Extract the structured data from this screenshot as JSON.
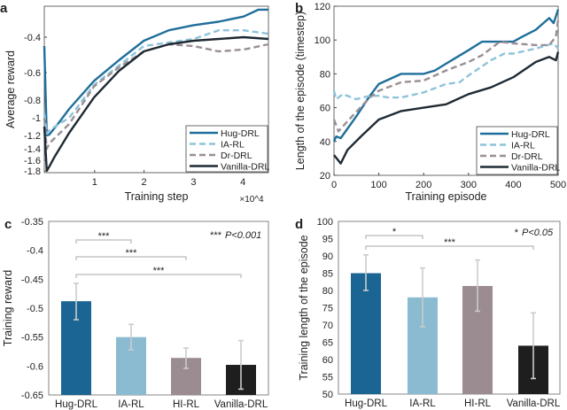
{
  "chart_data": [
    {
      "panel": "a",
      "type": "line",
      "xlabel": "Training step",
      "x_multiplier": "×10^4",
      "ylabel": "Average reward",
      "xlim": [
        0,
        4.5
      ],
      "ylim": [
        -1.83,
        -0.22
      ],
      "xticks": [
        "1",
        "2",
        "3",
        "4"
      ],
      "yticks": [
        "-0.4",
        "-0.6",
        "-0.8",
        "-1",
        "-1.2",
        "-1.4",
        "-1.6",
        "-1.8"
      ],
      "legend_position": "bottom-right",
      "series": [
        {
          "name": "Hug-DRL",
          "color": "#1f6f9a",
          "dash": false,
          "x": [
            0,
            0.05,
            0.1,
            0.3,
            0.5,
            1,
            1.5,
            2,
            2.5,
            3,
            3.5,
            4,
            4.3,
            4.5
          ],
          "y": [
            -0.45,
            -1.2,
            -1.19,
            -1.05,
            -0.9,
            -0.66,
            -0.53,
            -0.42,
            -0.36,
            -0.33,
            -0.31,
            -0.28,
            -0.24,
            -0.24
          ]
        },
        {
          "name": "IA-RL",
          "color": "#8ec3da",
          "dash": true,
          "x": [
            0,
            0.05,
            0.1,
            0.5,
            1,
            1.5,
            2,
            2.5,
            3,
            3.5,
            4,
            4.5
          ],
          "y": [
            -0.95,
            -1.18,
            -1.14,
            -1.0,
            -0.69,
            -0.56,
            -0.45,
            -0.43,
            -0.41,
            -0.36,
            -0.36,
            -0.38
          ]
        },
        {
          "name": "Dr-DRL",
          "color": "#9a8f93",
          "dash": true,
          "x": [
            0,
            0.05,
            0.1,
            0.5,
            1,
            1.5,
            2,
            2.5,
            3,
            3.5,
            4,
            4.5
          ],
          "y": [
            -1.0,
            -1.4,
            -1.32,
            -1.07,
            -0.7,
            -0.57,
            -0.48,
            -0.44,
            -0.45,
            -0.48,
            -0.47,
            -0.44
          ]
        },
        {
          "name": "Vanilla-DRL",
          "color": "#1f2a33",
          "dash": false,
          "x": [
            0,
            0.05,
            0.1,
            0.2,
            0.5,
            1,
            1.5,
            2,
            2.5,
            3,
            3.5,
            4,
            4.5
          ],
          "y": [
            -1.1,
            -1.8,
            -1.72,
            -1.55,
            -1.17,
            -0.78,
            -0.59,
            -0.48,
            -0.44,
            -0.42,
            -0.41,
            -0.4,
            -0.41
          ]
        }
      ]
    },
    {
      "panel": "b",
      "type": "line",
      "xlabel": "Training episode",
      "ylabel": "Length of the episode (timestep)",
      "xlim": [
        0,
        500
      ],
      "ylim": [
        20,
        120
      ],
      "xticks": [
        "0",
        "100",
        "200",
        "300",
        "400",
        "500"
      ],
      "yticks": [
        "20",
        "40",
        "60",
        "80",
        "100",
        "120"
      ],
      "legend_position": "bottom-right",
      "series": [
        {
          "name": "Hug-DRL",
          "color": "#1f6f9a",
          "dash": false,
          "x": [
            0,
            5,
            15,
            50,
            80,
            100,
            150,
            200,
            225,
            250,
            300,
            330,
            350,
            370,
            400,
            420,
            450,
            480,
            490,
            500
          ],
          "y": [
            40,
            43,
            42,
            55,
            67,
            74,
            80,
            80,
            82,
            86,
            94,
            99,
            99,
            99,
            99,
            102,
            106,
            113,
            110,
            118
          ]
        },
        {
          "name": "IA-RL",
          "color": "#8ec3da",
          "dash": true,
          "x": [
            0,
            5,
            20,
            50,
            80,
            100,
            120,
            150,
            200,
            250,
            280,
            300,
            350,
            380,
            400,
            450,
            490,
            500
          ],
          "y": [
            70,
            65,
            68,
            65,
            67,
            67,
            66,
            66,
            69,
            74,
            75,
            79,
            88,
            92,
            92,
            95,
            98,
            95
          ]
        },
        {
          "name": "Dr-DRL",
          "color": "#9a8f93",
          "dash": true,
          "x": [
            0,
            10,
            30,
            80,
            100,
            150,
            200,
            250,
            300,
            330,
            370,
            400,
            450,
            480,
            495,
            500
          ],
          "y": [
            53,
            46,
            52,
            66,
            70,
            75,
            76,
            82,
            87,
            91,
            99,
            98,
            97,
            97,
            102,
            112
          ]
        },
        {
          "name": "Vanilla-DRL",
          "color": "#1f2a33",
          "dash": false,
          "x": [
            0,
            15,
            30,
            60,
            100,
            150,
            200,
            250,
            300,
            350,
            400,
            450,
            480,
            495,
            500
          ],
          "y": [
            32,
            27,
            35,
            43,
            53,
            58,
            60,
            62,
            68,
            72,
            78,
            87,
            90,
            88,
            93
          ]
        }
      ]
    },
    {
      "panel": "c",
      "type": "bar",
      "ylabel": "Training reward",
      "ylim": [
        -0.65,
        -0.35
      ],
      "yticks": [
        "-0.35",
        "-0.4",
        "-0.45",
        "-0.5",
        "-0.55",
        "-0.6",
        "-0.65"
      ],
      "categories": [
        "Hug-DRL",
        "IA-RL",
        "HI-RL",
        "Vanilla-DRL"
      ],
      "values": [
        -0.488,
        -0.55,
        -0.586,
        -0.598
      ],
      "error_low": [
        -0.52,
        -0.572,
        -0.604,
        -0.64
      ],
      "error_high": [
        -0.457,
        -0.528,
        -0.569,
        -0.556
      ],
      "colors": [
        "#1a6593",
        "#8bbbd0",
        "#9a8c90",
        "#1e1e1e"
      ],
      "significance": [
        {
          "from": 0,
          "to": 1,
          "label": "***"
        },
        {
          "from": 0,
          "to": 2,
          "label": "***"
        },
        {
          "from": 0,
          "to": 3,
          "label": "***"
        }
      ],
      "note_stars": "***",
      "note_p": "P<0.001"
    },
    {
      "panel": "d",
      "type": "bar",
      "ylabel": "Training length of the episode",
      "ylim": [
        50,
        100
      ],
      "yticks": [
        "50",
        "55",
        "60",
        "65",
        "70",
        "75",
        "80",
        "85",
        "90",
        "95",
        "100"
      ],
      "categories": [
        "Hug-DRL",
        "IA-RL",
        "HI-RL",
        "Vanilla-DRL"
      ],
      "values": [
        85,
        78,
        81.3,
        64
      ],
      "error_low": [
        80,
        69.5,
        74,
        54.5
      ],
      "error_high": [
        90.3,
        86.5,
        88.8,
        73.5
      ],
      "colors": [
        "#1a6593",
        "#8bbbd0",
        "#9a8c90",
        "#1e1e1e"
      ],
      "significance": [
        {
          "from": 0,
          "to": 1,
          "label": "*"
        },
        {
          "from": 0,
          "to": 3,
          "label": "***"
        }
      ],
      "note_stars": "*",
      "note_p": "P<0.05"
    }
  ]
}
